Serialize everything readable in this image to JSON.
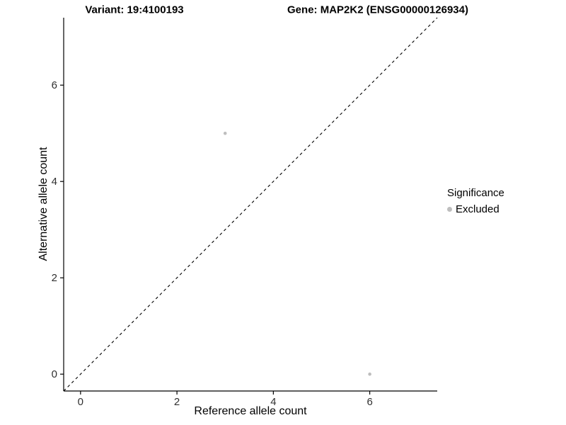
{
  "chart_data": {
    "type": "scatter",
    "title_left": "Variant: 19:4100193",
    "title_right": "Gene: MAP2K2 (ENSG00000126934)",
    "xlabel": "Reference allele count",
    "ylabel": "Alternative allele count",
    "xlim": [
      -0.35,
      7.4
    ],
    "ylim": [
      -0.35,
      7.4
    ],
    "xticks": [
      0,
      2,
      4,
      6
    ],
    "yticks": [
      0,
      2,
      4,
      6
    ],
    "grid": false,
    "point_color": "#bebebe",
    "axis_color": "#000000",
    "identity_line": {
      "style": "dashed",
      "color": "#000000"
    },
    "series": [
      {
        "name": "Excluded",
        "color": "#bebebe",
        "points": [
          [
            3,
            5
          ],
          [
            6,
            0
          ]
        ]
      }
    ],
    "legend": {
      "position": "right",
      "title": "Significance",
      "entries": [
        {
          "label": "Excluded",
          "color": "#bebebe"
        }
      ]
    }
  }
}
